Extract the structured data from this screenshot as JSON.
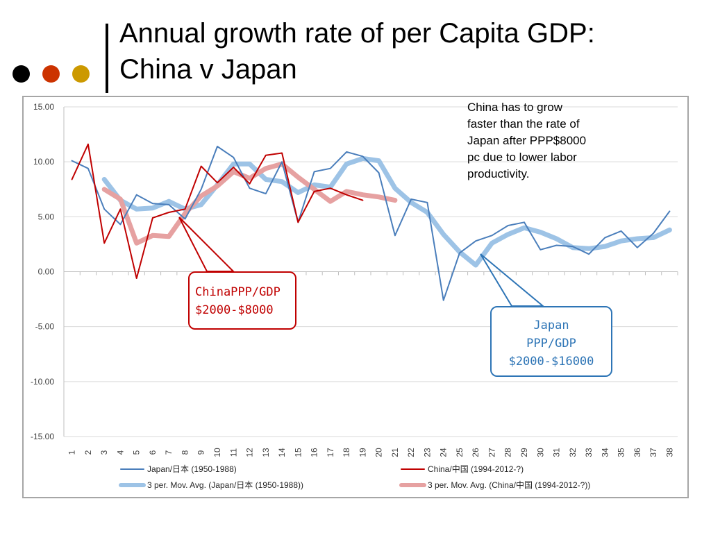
{
  "slide": {
    "title_line1": "Annual growth rate of per Capita GDP:",
    "title_line2": "China v Japan",
    "bullet_dot_colors": [
      "#000000",
      "#cc3300",
      "#cc9900"
    ]
  },
  "note": {
    "lines": [
      "China has to grow",
      "faster than the rate of",
      "Japan after PPP$8000",
      "pc  due to lower labor",
      "productivity."
    ]
  },
  "callouts": {
    "china": {
      "line1": "ChinaPPP/GDP",
      "line2": "$2000-$8000"
    },
    "japan": {
      "line1": "Japan",
      "line2": "PPP/GDP",
      "line3": "$2000-$16000"
    }
  },
  "chart_data": {
    "type": "line",
    "title": "",
    "xlabel": "",
    "ylabel": "",
    "x": [
      1,
      2,
      3,
      4,
      5,
      6,
      7,
      8,
      9,
      10,
      11,
      12,
      13,
      14,
      15,
      16,
      17,
      18,
      19,
      20,
      21,
      22,
      23,
      24,
      25,
      26,
      27,
      28,
      29,
      30,
      31,
      32,
      33,
      34,
      35,
      36,
      37,
      38
    ],
    "ylim": [
      -15,
      15
    ],
    "y_ticks": [
      15,
      10,
      5,
      0,
      -5,
      -10,
      -15
    ],
    "y_tick_labels": [
      "15.00",
      "10.00",
      "5.00",
      "0.00",
      "-5.00",
      "-10.00",
      "-15.00"
    ],
    "grid": true,
    "legend_position": "bottom",
    "series": [
      {
        "name": "Japan/日本 (1950-1988)",
        "color": "#4a7ebb",
        "style": "thin",
        "values": [
          10.1,
          9.4,
          5.7,
          4.3,
          7.0,
          6.2,
          6.1,
          4.8,
          7.5,
          11.4,
          10.4,
          7.6,
          7.1,
          10.0,
          4.5,
          9.1,
          9.4,
          10.9,
          10.5,
          9.0,
          3.3,
          6.6,
          6.3,
          -2.6,
          1.7,
          2.8,
          3.3,
          4.2,
          4.5,
          2.0,
          2.4,
          2.3,
          1.6,
          3.1,
          3.7,
          2.2,
          3.5,
          5.5
        ]
      },
      {
        "name": "China/中国 (1994-2012-?)",
        "color": "#c00000",
        "style": "thin",
        "values": [
          8.4,
          11.6,
          2.6,
          5.7,
          -0.6,
          4.9,
          5.4,
          5.7,
          9.6,
          8.1,
          9.5,
          8.0,
          10.6,
          10.8,
          4.5,
          7.3,
          7.6,
          7.0,
          6.5,
          null,
          null,
          null,
          null,
          null,
          null,
          null,
          null,
          null,
          null,
          null,
          null,
          null,
          null,
          null,
          null,
          null,
          null,
          null
        ]
      },
      {
        "name": "3 per. Mov. Avg. (Japan/日本 (1950-1988))",
        "color": "#9dc3e6",
        "style": "thick",
        "values": [
          null,
          null,
          8.4,
          6.5,
          5.7,
          5.8,
          6.4,
          5.7,
          6.1,
          7.9,
          9.8,
          9.8,
          8.4,
          8.2,
          7.2,
          7.9,
          7.7,
          9.8,
          10.3,
          10.1,
          7.6,
          6.3,
          5.4,
          3.4,
          1.8,
          0.6,
          2.6,
          3.4,
          4.0,
          3.6,
          3.0,
          2.2,
          2.1,
          2.3,
          2.8,
          3.0,
          3.1,
          3.8
        ]
      },
      {
        "name": "3 per. Mov. Avg. (China/中国 (1994-2012-?))",
        "color": "#e6a1a1",
        "style": "thick",
        "values": [
          null,
          null,
          7.5,
          6.6,
          2.6,
          3.3,
          3.2,
          5.3,
          6.9,
          7.8,
          9.1,
          8.5,
          9.4,
          9.8,
          8.6,
          7.5,
          6.4,
          7.3,
          7.0,
          6.8,
          6.5,
          null,
          null,
          null,
          null,
          null,
          null,
          null,
          null,
          null,
          null,
          null,
          null,
          null,
          null,
          null,
          null,
          null
        ]
      }
    ],
    "legend": [
      {
        "label": "Japan/日本 (1950-1988)",
        "color": "#4a7ebb",
        "style": "thin"
      },
      {
        "label": "China/中国 (1994-2012-?)",
        "color": "#c00000",
        "style": "thin"
      },
      {
        "label": "3 per. Mov. Avg. (Japan/日本 (1950-1988))",
        "color": "#9dc3e6",
        "style": "thick"
      },
      {
        "label": "3 per. Mov. Avg. (China/中国 (1994-2012-?))",
        "color": "#e6a1a1",
        "style": "thick"
      }
    ]
  }
}
